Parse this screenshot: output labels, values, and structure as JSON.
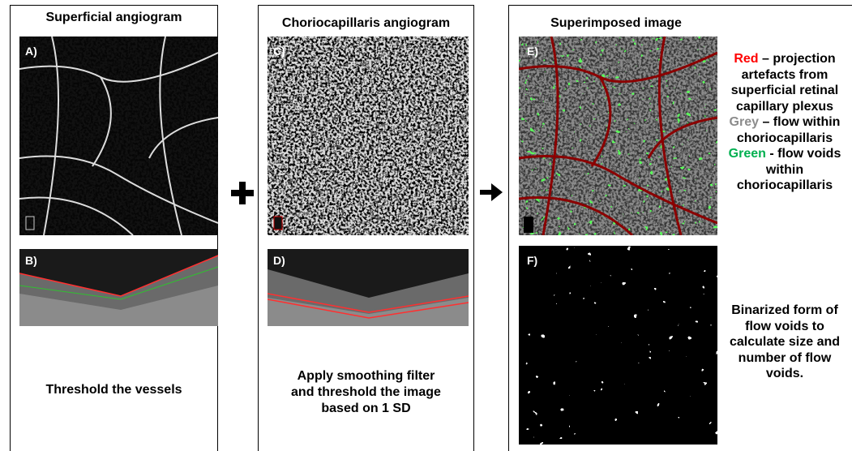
{
  "panels": [
    {
      "title": "Superficial angiogram",
      "images": [
        {
          "label": "A)"
        },
        {
          "label": "B)"
        }
      ],
      "caption": "Threshold the vessels"
    },
    {
      "title": "Choriocapillaris angiogram",
      "images": [
        {
          "label": "C)"
        },
        {
          "label": "D)"
        }
      ],
      "caption": [
        "Apply smoothing filter",
        "and threshold the image",
        "based on 1 SD"
      ]
    },
    {
      "title": "Superimposed image",
      "images": [
        {
          "label": "E)"
        },
        {
          "label": "F)"
        }
      ],
      "legend": [
        {
          "key": "Red",
          "text": "– projection artefacts from superficial retinal capillary plexus"
        },
        {
          "key": "Grey",
          "text": "– flow within choriocapillaris"
        },
        {
          "key": "Green",
          "text": "- flow voids within choriocapillaris"
        }
      ],
      "caption": "Binarized form of flow voids to calculate size and number of flow voids."
    }
  ]
}
